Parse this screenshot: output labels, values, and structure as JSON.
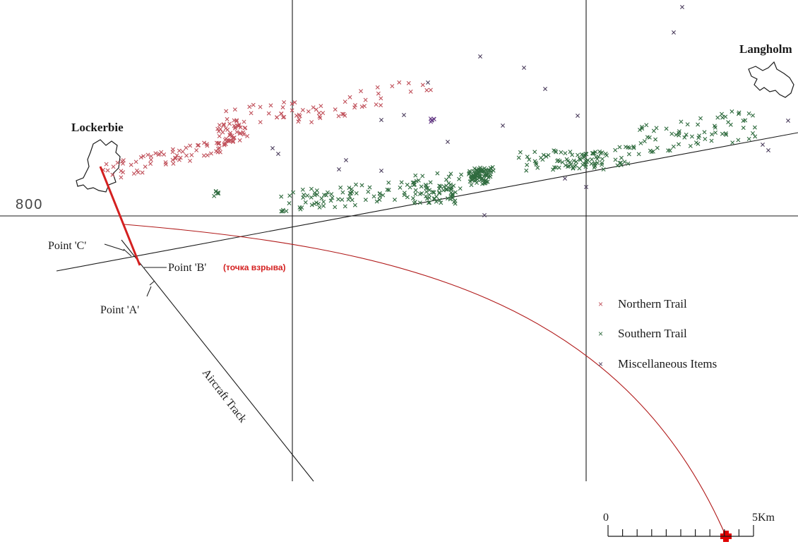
{
  "map": {
    "places": {
      "lockerbie": "Lockerbie",
      "langholm": "Langholm"
    },
    "grid_label": "800",
    "points": {
      "a": "Point 'A'",
      "b": "Point 'B'",
      "b_note": "(точка взрыва)",
      "c": "Point 'C'"
    },
    "aircraft_track": "Aircraft Track",
    "legend": {
      "northern": "Northern Trail",
      "southern": "Southern Trail",
      "misc": "Miscellaneous Items"
    },
    "scale": {
      "start": "0",
      "end": "5Km",
      "divisions": 5
    },
    "colors": {
      "northern": "#c0505a",
      "southern": "#2f6b3e",
      "misc": "#4a3c5c",
      "annotation": "#d42020",
      "grid": "#1a1a1a"
    }
  }
}
